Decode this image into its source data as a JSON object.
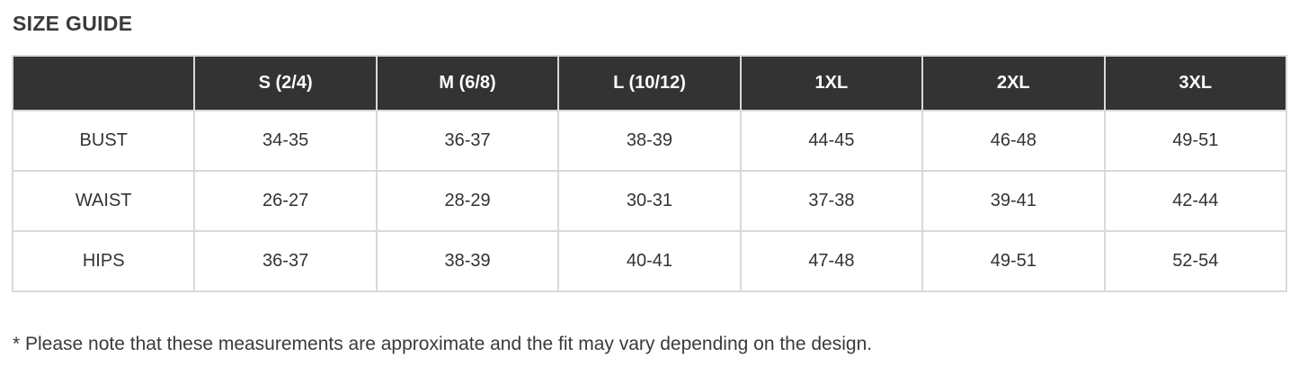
{
  "page": {
    "title": "SIZE GUIDE",
    "footnote": "* Please note that these measurements are approximate and the fit may vary depending on the design."
  },
  "table": {
    "columns": [
      "",
      "S (2/4)",
      "M (6/8)",
      "L (10/12)",
      "1XL",
      "2XL",
      "3XL"
    ],
    "rows": [
      {
        "label": "BUST",
        "values": [
          "34-35",
          "36-37",
          "38-39",
          "44-45",
          "46-48",
          "49-51"
        ]
      },
      {
        "label": "WAIST",
        "values": [
          "26-27",
          "28-29",
          "30-31",
          "37-38",
          "39-41",
          "42-44"
        ]
      },
      {
        "label": "HIPS",
        "values": [
          "36-37",
          "38-39",
          "40-41",
          "47-48",
          "49-51",
          "52-54"
        ]
      }
    ]
  },
  "colors": {
    "header_bg": "#333333",
    "header_text": "#ffffff",
    "border": "#d9d9d9",
    "body_text": "#333333",
    "page_bg": "#ffffff"
  }
}
